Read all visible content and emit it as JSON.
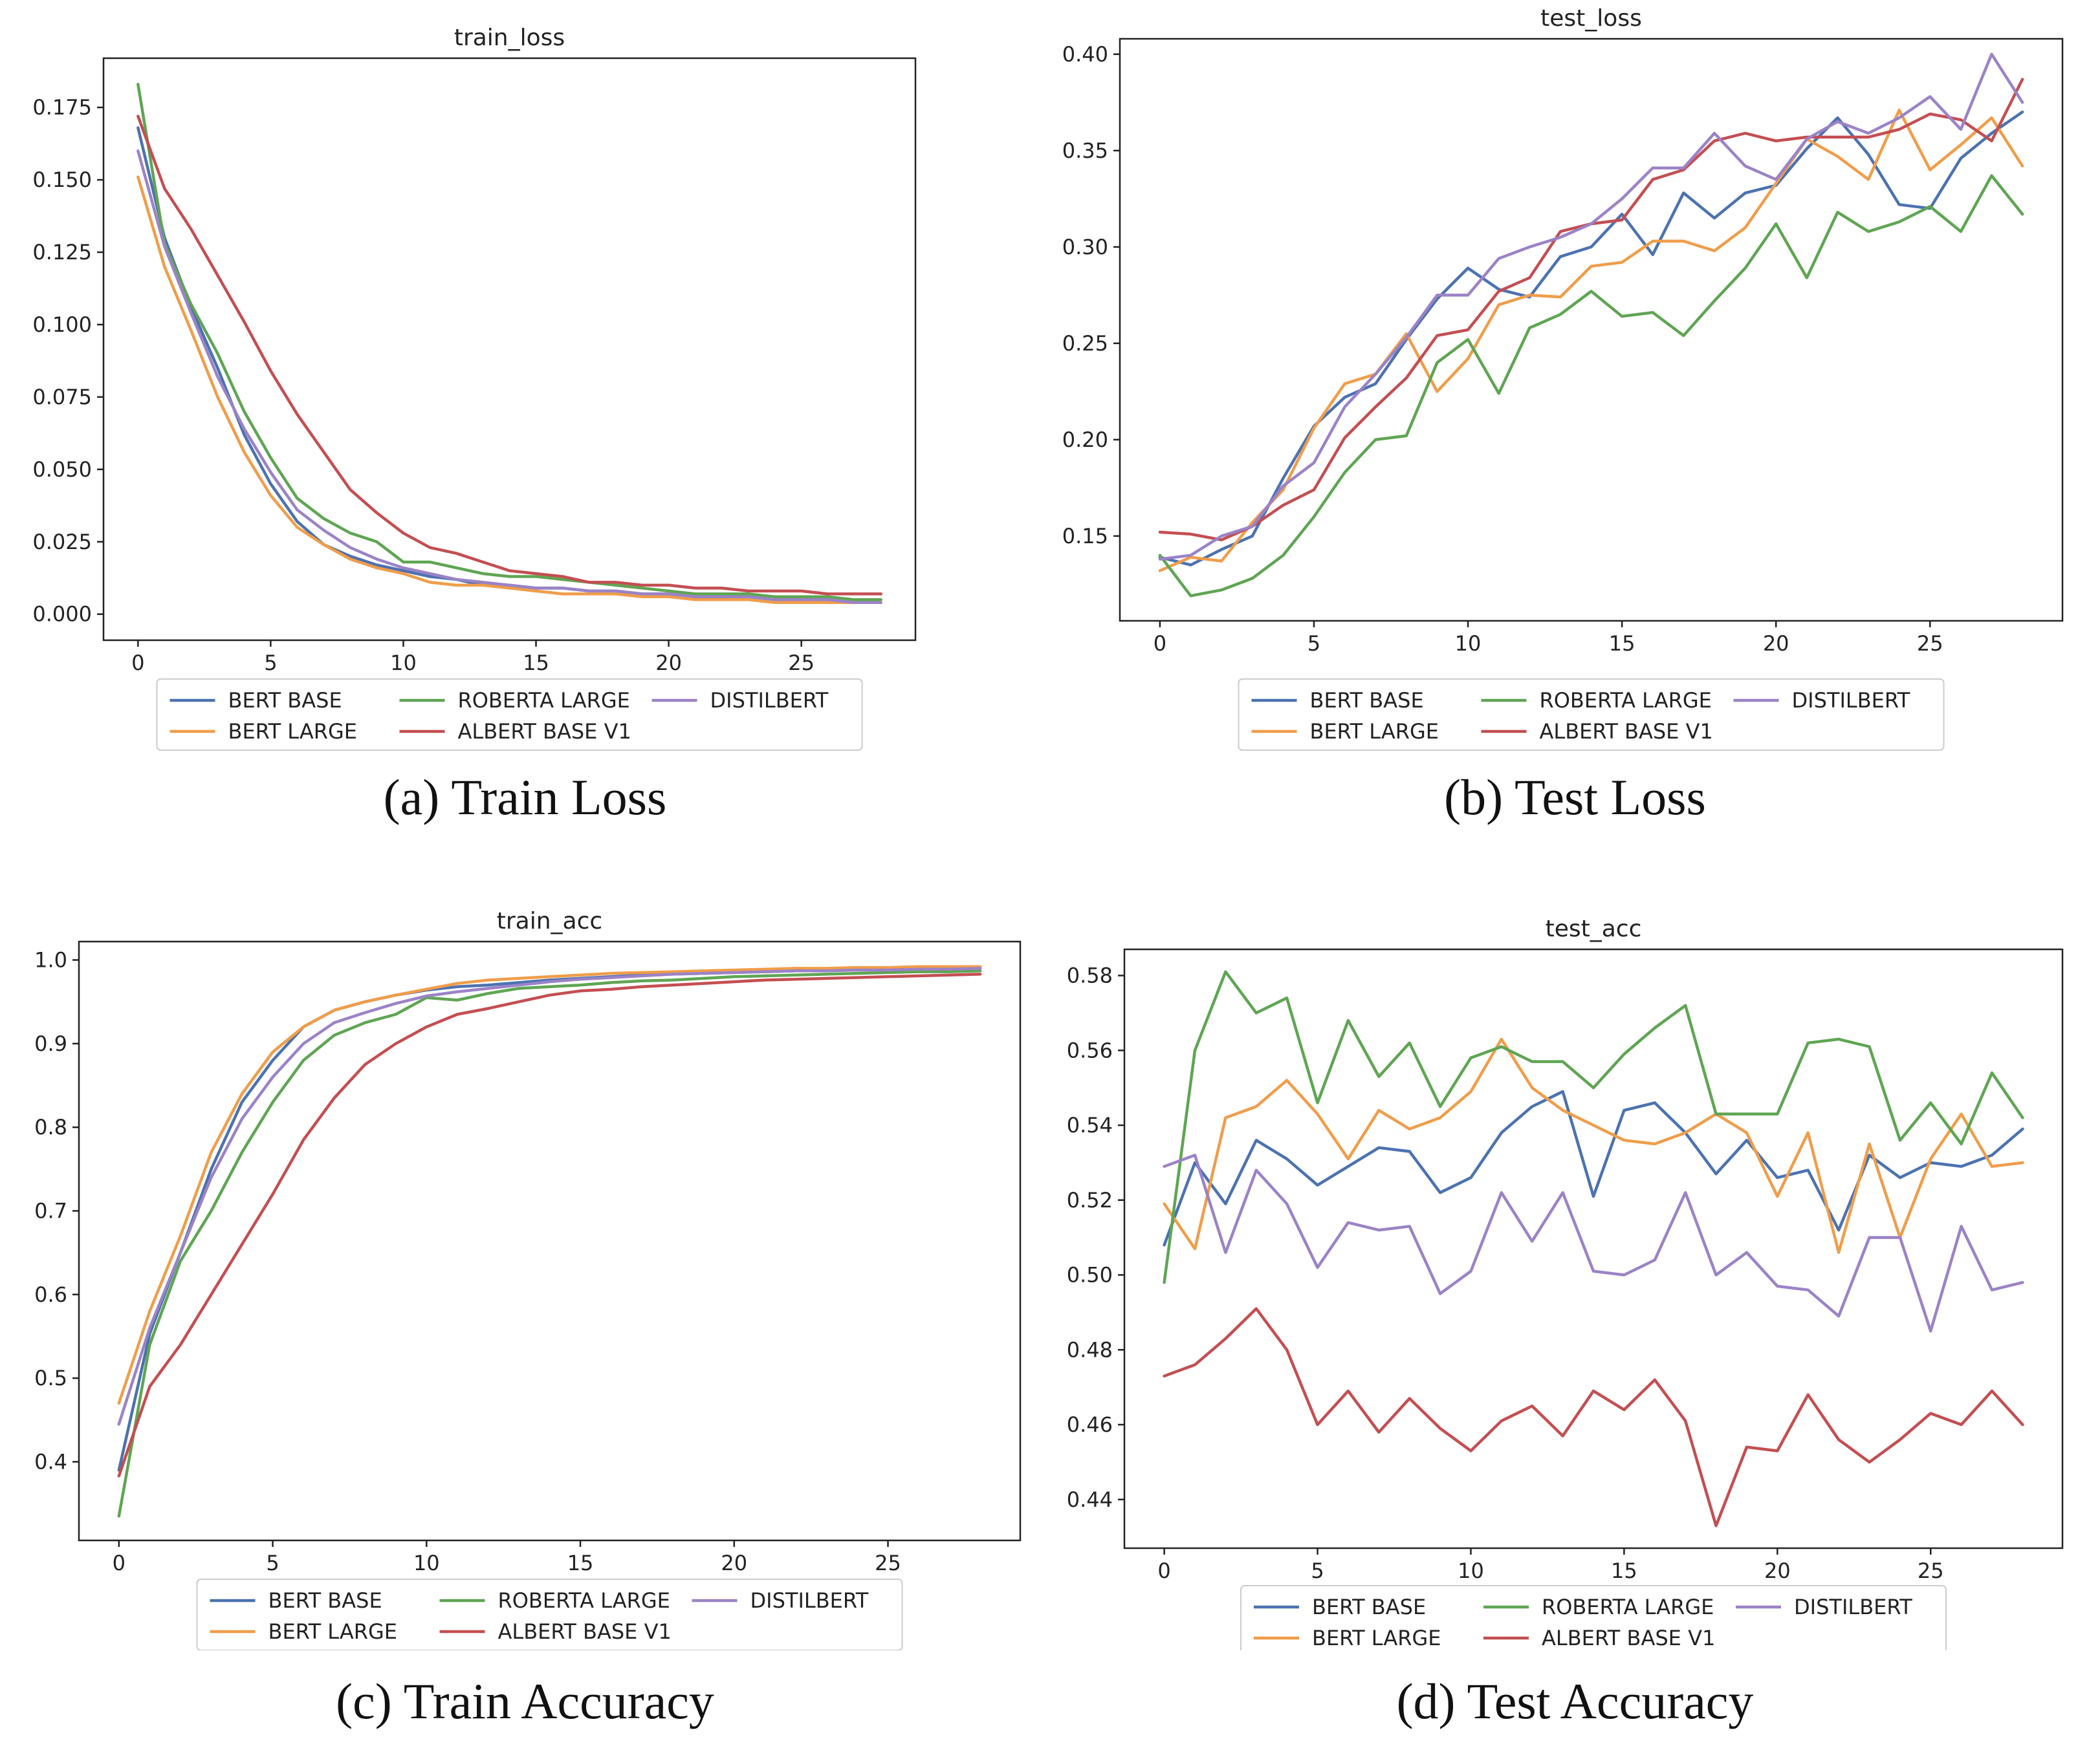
{
  "figure": {
    "colors": {
      "bert_base": "#4c72b0",
      "bert_large": "#f09d4a",
      "roberta_large": "#5fa553",
      "albert_base_v1": "#c44e52",
      "distilbert": "#9b83c7"
    },
    "legend_labels": [
      "BERT BASE",
      "BERT LARGE",
      "ROBERTA LARGE",
      "ALBERT BASE V1",
      "DISTILBERT"
    ]
  },
  "chart_data": [
    {
      "id": "train_loss",
      "type": "line",
      "title": "train_loss",
      "caption": "(a) Train Loss",
      "xlabel": "",
      "ylabel": "",
      "xlim": [
        -1.3,
        29.3
      ],
      "ylim": [
        -0.009,
        0.192
      ],
      "xticks": [
        0,
        5,
        10,
        15,
        20,
        25
      ],
      "xtick_labels": [
        "0",
        "5",
        "10",
        "15",
        "20",
        "25"
      ],
      "yticks": [
        0,
        0.025,
        0.05,
        0.075,
        0.1,
        0.125,
        0.15,
        0.175
      ],
      "ytick_labels": [
        "0.000",
        "0.025",
        "0.050",
        "0.075",
        "0.100",
        "0.125",
        "0.150",
        "0.175"
      ],
      "legend": "bottom-center",
      "x": [
        0,
        1,
        2,
        3,
        4,
        5,
        6,
        7,
        8,
        9,
        10,
        11,
        12,
        13,
        14,
        15,
        16,
        17,
        18,
        19,
        20,
        21,
        22,
        23,
        24,
        25,
        26,
        27,
        28
      ],
      "series": [
        {
          "name": "BERT BASE",
          "color_key": "bert_base",
          "values": [
            0.168,
            0.13,
            0.106,
            0.085,
            0.062,
            0.045,
            0.032,
            0.024,
            0.02,
            0.017,
            0.015,
            0.013,
            0.012,
            0.01,
            0.01,
            0.009,
            0.009,
            0.008,
            0.008,
            0.007,
            0.007,
            0.006,
            0.006,
            0.006,
            0.005,
            0.005,
            0.005,
            0.004,
            0.004
          ]
        },
        {
          "name": "BERT LARGE",
          "color_key": "bert_large",
          "values": [
            0.151,
            0.12,
            0.098,
            0.075,
            0.056,
            0.041,
            0.03,
            0.024,
            0.019,
            0.016,
            0.014,
            0.011,
            0.01,
            0.01,
            0.009,
            0.008,
            0.007,
            0.007,
            0.007,
            0.006,
            0.006,
            0.005,
            0.005,
            0.005,
            0.004,
            0.004,
            0.004,
            0.004,
            0.004
          ]
        },
        {
          "name": "ROBERTA LARGE",
          "color_key": "roberta_large",
          "values": [
            0.183,
            0.128,
            0.107,
            0.09,
            0.07,
            0.054,
            0.04,
            0.033,
            0.028,
            0.025,
            0.018,
            0.018,
            0.016,
            0.014,
            0.013,
            0.013,
            0.012,
            0.011,
            0.01,
            0.009,
            0.008,
            0.007,
            0.007,
            0.007,
            0.006,
            0.006,
            0.006,
            0.005,
            0.005
          ]
        },
        {
          "name": "ALBERT BASE V1",
          "color_key": "albert_base_v1",
          "values": [
            0.172,
            0.147,
            0.133,
            0.117,
            0.101,
            0.084,
            0.069,
            0.056,
            0.043,
            0.035,
            0.028,
            0.023,
            0.021,
            0.018,
            0.015,
            0.014,
            0.013,
            0.011,
            0.011,
            0.01,
            0.01,
            0.009,
            0.009,
            0.008,
            0.008,
            0.008,
            0.007,
            0.007,
            0.007
          ]
        },
        {
          "name": "DISTILBERT",
          "color_key": "distilbert",
          "values": [
            0.16,
            0.127,
            0.104,
            0.082,
            0.064,
            0.049,
            0.036,
            0.029,
            0.023,
            0.019,
            0.016,
            0.014,
            0.012,
            0.011,
            0.01,
            0.009,
            0.009,
            0.008,
            0.008,
            0.007,
            0.007,
            0.006,
            0.006,
            0.006,
            0.005,
            0.005,
            0.005,
            0.004,
            0.004
          ]
        }
      ]
    },
    {
      "id": "test_loss",
      "type": "line",
      "title": "test_loss",
      "caption": "(b) Test Loss",
      "xlabel": "",
      "ylabel": "",
      "xlim": [
        -1.3,
        29.3
      ],
      "ylim": [
        0.106,
        0.408
      ],
      "xticks": [
        0,
        5,
        10,
        15,
        20,
        25
      ],
      "xtick_labels": [
        "0",
        "5",
        "10",
        "15",
        "20",
        "25"
      ],
      "yticks": [
        0.15,
        0.2,
        0.25,
        0.3,
        0.35,
        0.4
      ],
      "ytick_labels": [
        "0.15",
        "0.20",
        "0.25",
        "0.30",
        "0.35",
        "0.40"
      ],
      "legend": "bottom-center",
      "x": [
        0,
        1,
        2,
        3,
        4,
        5,
        6,
        7,
        8,
        9,
        10,
        11,
        12,
        13,
        14,
        15,
        16,
        17,
        18,
        19,
        20,
        21,
        22,
        23,
        24,
        25,
        26,
        27,
        28
      ],
      "series": [
        {
          "name": "BERT BASE",
          "color_key": "bert_base",
          "values": [
            0.139,
            0.135,
            0.143,
            0.15,
            0.18,
            0.207,
            0.222,
            0.229,
            0.252,
            0.273,
            0.289,
            0.278,
            0.274,
            0.295,
            0.3,
            0.317,
            0.296,
            0.328,
            0.315,
            0.328,
            0.332,
            0.351,
            0.367,
            0.348,
            0.322,
            0.32,
            0.346,
            0.359,
            0.37
          ]
        },
        {
          "name": "BERT LARGE",
          "color_key": "bert_large",
          "values": [
            0.132,
            0.139,
            0.137,
            0.157,
            0.174,
            0.206,
            0.229,
            0.234,
            0.255,
            0.225,
            0.242,
            0.27,
            0.275,
            0.274,
            0.29,
            0.292,
            0.303,
            0.303,
            0.298,
            0.31,
            0.333,
            0.356,
            0.347,
            0.335,
            0.371,
            0.34,
            0.353,
            0.367,
            0.342
          ]
        },
        {
          "name": "ROBERTA LARGE",
          "color_key": "roberta_large",
          "values": [
            0.14,
            0.119,
            0.122,
            0.128,
            0.14,
            0.16,
            0.183,
            0.2,
            0.202,
            0.24,
            0.252,
            0.224,
            0.258,
            0.265,
            0.277,
            0.264,
            0.266,
            0.254,
            0.272,
            0.289,
            0.312,
            0.284,
            0.318,
            0.308,
            0.313,
            0.321,
            0.308,
            0.337,
            0.317
          ]
        },
        {
          "name": "ALBERT BASE V1",
          "color_key": "albert_base_v1",
          "values": [
            0.152,
            0.151,
            0.148,
            0.155,
            0.166,
            0.174,
            0.201,
            0.217,
            0.232,
            0.254,
            0.257,
            0.277,
            0.284,
            0.308,
            0.312,
            0.314,
            0.335,
            0.34,
            0.355,
            0.359,
            0.355,
            0.357,
            0.357,
            0.357,
            0.361,
            0.369,
            0.366,
            0.355,
            0.387
          ]
        },
        {
          "name": "DISTILBERT",
          "color_key": "distilbert",
          "values": [
            0.138,
            0.14,
            0.15,
            0.155,
            0.176,
            0.188,
            0.217,
            0.234,
            0.253,
            0.275,
            0.275,
            0.294,
            0.3,
            0.305,
            0.312,
            0.325,
            0.341,
            0.341,
            0.359,
            0.342,
            0.335,
            0.356,
            0.365,
            0.359,
            0.367,
            0.378,
            0.361,
            0.4,
            0.375
          ]
        }
      ]
    },
    {
      "id": "train_acc",
      "type": "line",
      "title": "train_acc",
      "caption": "(c) Train Accuracy",
      "xlabel": "",
      "ylabel": "",
      "xlim": [
        -1.3,
        29.3
      ],
      "ylim": [
        0.306,
        1.022
      ],
      "xticks": [
        0,
        5,
        10,
        15,
        20,
        25
      ],
      "xtick_labels": [
        "0",
        "5",
        "10",
        "15",
        "20",
        "25"
      ],
      "yticks": [
        0.4,
        0.5,
        0.6,
        0.7,
        0.8,
        0.9,
        1.0
      ],
      "ytick_labels": [
        "0.4",
        "0.5",
        "0.6",
        "0.7",
        "0.8",
        "0.9",
        "1.0"
      ],
      "legend": "bottom-center",
      "x": [
        0,
        1,
        2,
        3,
        4,
        5,
        6,
        7,
        8,
        9,
        10,
        11,
        12,
        13,
        14,
        15,
        16,
        17,
        18,
        19,
        20,
        21,
        22,
        23,
        24,
        25,
        26,
        27,
        28
      ],
      "series": [
        {
          "name": "BERT BASE",
          "color_key": "bert_base",
          "values": [
            0.39,
            0.553,
            0.65,
            0.75,
            0.83,
            0.88,
            0.92,
            0.94,
            0.95,
            0.958,
            0.964,
            0.968,
            0.97,
            0.973,
            0.976,
            0.978,
            0.98,
            0.982,
            0.983,
            0.984,
            0.985,
            0.986,
            0.987,
            0.988,
            0.988,
            0.989,
            0.99,
            0.99,
            0.99
          ]
        },
        {
          "name": "BERT LARGE",
          "color_key": "bert_large",
          "values": [
            0.47,
            0.58,
            0.67,
            0.77,
            0.84,
            0.89,
            0.92,
            0.94,
            0.95,
            0.958,
            0.965,
            0.972,
            0.976,
            0.978,
            0.98,
            0.982,
            0.984,
            0.985,
            0.986,
            0.987,
            0.988,
            0.989,
            0.99,
            0.99,
            0.991,
            0.991,
            0.992,
            0.992,
            0.992
          ]
        },
        {
          "name": "ROBERTA LARGE",
          "color_key": "roberta_large",
          "values": [
            0.335,
            0.54,
            0.64,
            0.7,
            0.77,
            0.83,
            0.88,
            0.91,
            0.925,
            0.935,
            0.955,
            0.952,
            0.96,
            0.966,
            0.968,
            0.97,
            0.973,
            0.975,
            0.976,
            0.978,
            0.98,
            0.981,
            0.982,
            0.983,
            0.984,
            0.985,
            0.986,
            0.986,
            0.987
          ]
        },
        {
          "name": "ALBERT BASE V1",
          "color_key": "albert_base_v1",
          "values": [
            0.383,
            0.49,
            0.54,
            0.6,
            0.66,
            0.72,
            0.785,
            0.835,
            0.875,
            0.9,
            0.92,
            0.935,
            0.942,
            0.95,
            0.958,
            0.963,
            0.965,
            0.968,
            0.97,
            0.972,
            0.974,
            0.976,
            0.977,
            0.978,
            0.979,
            0.98,
            0.981,
            0.982,
            0.983
          ]
        },
        {
          "name": "DISTILBERT",
          "color_key": "distilbert",
          "values": [
            0.445,
            0.56,
            0.65,
            0.74,
            0.81,
            0.86,
            0.9,
            0.925,
            0.937,
            0.948,
            0.957,
            0.962,
            0.966,
            0.97,
            0.974,
            0.977,
            0.979,
            0.981,
            0.983,
            0.984,
            0.985,
            0.986,
            0.987,
            0.987,
            0.988,
            0.988,
            0.989,
            0.989,
            0.99
          ]
        }
      ]
    },
    {
      "id": "test_acc",
      "type": "line",
      "title": "test_acc",
      "caption": "(d) Test Accuracy",
      "xlabel": "",
      "ylabel": "",
      "xlim": [
        -1.3,
        29.3
      ],
      "ylim": [
        0.427,
        0.587
      ],
      "xticks": [
        0,
        5,
        10,
        15,
        20,
        25
      ],
      "xtick_labels": [
        "0",
        "5",
        "10",
        "15",
        "20",
        "25"
      ],
      "yticks": [
        0.44,
        0.46,
        0.48,
        0.5,
        0.52,
        0.54,
        0.56,
        0.58
      ],
      "ytick_labels": [
        "0.44",
        "0.46",
        "0.48",
        "0.50",
        "0.52",
        "0.54",
        "0.56",
        "0.58"
      ],
      "legend": "bottom-center",
      "x": [
        0,
        1,
        2,
        3,
        4,
        5,
        6,
        7,
        8,
        9,
        10,
        11,
        12,
        13,
        14,
        15,
        16,
        17,
        18,
        19,
        20,
        21,
        22,
        23,
        24,
        25,
        26,
        27,
        28
      ],
      "series": [
        {
          "name": "BERT BASE",
          "color_key": "bert_base",
          "values": [
            0.508,
            0.53,
            0.519,
            0.536,
            0.531,
            0.524,
            0.529,
            0.534,
            0.533,
            0.522,
            0.526,
            0.538,
            0.545,
            0.549,
            0.521,
            0.544,
            0.546,
            0.538,
            0.527,
            0.536,
            0.526,
            0.528,
            0.512,
            0.532,
            0.526,
            0.53,
            0.529,
            0.532,
            0.539
          ]
        },
        {
          "name": "BERT LARGE",
          "color_key": "bert_large",
          "values": [
            0.519,
            0.507,
            0.542,
            0.545,
            0.552,
            0.543,
            0.531,
            0.544,
            0.539,
            0.542,
            0.549,
            0.563,
            0.55,
            0.544,
            0.54,
            0.536,
            0.535,
            0.538,
            0.543,
            0.538,
            0.521,
            0.538,
            0.506,
            0.535,
            0.51,
            0.531,
            0.543,
            0.529,
            0.53
          ]
        },
        {
          "name": "ROBERTA LARGE",
          "color_key": "roberta_large",
          "values": [
            0.498,
            0.56,
            0.581,
            0.57,
            0.574,
            0.546,
            0.568,
            0.553,
            0.562,
            0.545,
            0.558,
            0.561,
            0.557,
            0.557,
            0.55,
            0.559,
            0.566,
            0.572,
            0.543,
            0.543,
            0.543,
            0.562,
            0.563,
            0.561,
            0.536,
            0.546,
            0.535,
            0.554,
            0.542
          ]
        },
        {
          "name": "ALBERT BASE V1",
          "color_key": "albert_base_v1",
          "values": [
            0.473,
            0.476,
            0.483,
            0.491,
            0.48,
            0.46,
            0.469,
            0.458,
            0.467,
            0.459,
            0.453,
            0.461,
            0.465,
            0.457,
            0.469,
            0.464,
            0.472,
            0.461,
            0.433,
            0.454,
            0.453,
            0.468,
            0.456,
            0.45,
            0.456,
            0.463,
            0.46,
            0.469,
            0.46
          ]
        },
        {
          "name": "DISTILBERT",
          "color_key": "distilbert",
          "values": [
            0.529,
            0.532,
            0.506,
            0.528,
            0.519,
            0.502,
            0.514,
            0.512,
            0.513,
            0.495,
            0.501,
            0.522,
            0.509,
            0.522,
            0.501,
            0.5,
            0.504,
            0.522,
            0.5,
            0.506,
            0.497,
            0.496,
            0.489,
            0.51,
            0.51,
            0.485,
            0.513,
            0.496,
            0.498
          ]
        }
      ]
    }
  ]
}
